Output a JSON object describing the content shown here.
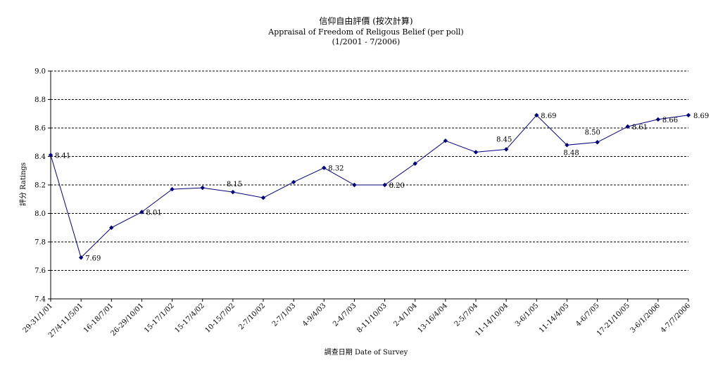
{
  "chart_data": {
    "type": "line",
    "title": "信仰自由評價 (按次計算)",
    "subtitle": "Appraisal of Freedom of Religous Belief (per poll)",
    "subtitle2": "(1/2001 - 7/2006)",
    "xlabel": "調查日期 Date of Survey",
    "ylabel": "評分 Ratings",
    "ylim": [
      7.4,
      9.0
    ],
    "yticks": [
      "9.0",
      "8.8",
      "8.6",
      "8.4",
      "8.2",
      "8.0",
      "7.8",
      "7.6",
      "7.4"
    ],
    "grid": "horizontal-dashed",
    "line_color": "#000080",
    "categories": [
      "29-31/1/01",
      "27/4-11/5/01",
      "16-18/7/01",
      "26-29/10/01",
      "15-17/1/02",
      "15-17/4/02",
      "10-15/7/02",
      "2-7/10/02",
      "2-7/1/03",
      "4-9/4/03",
      "2-4/7/03",
      "8-11/10/03",
      "2-4/1/04",
      "13-16/4/04",
      "2-5/7/04",
      "11-14/10/04",
      "3-6/1/05",
      "11-14/4/05",
      "4-6/7/05",
      "17-21/10/05",
      "3-6/1/2006",
      "4-7/7/2006"
    ],
    "values": [
      8.41,
      7.69,
      7.9,
      8.01,
      8.17,
      8.18,
      8.15,
      8.11,
      8.22,
      8.32,
      8.2,
      8.2,
      8.35,
      8.51,
      8.43,
      8.45,
      8.69,
      8.48,
      8.5,
      8.61,
      8.66,
      8.69
    ],
    "data_labels": [
      {
        "index": 0,
        "text": "8.41"
      },
      {
        "index": 1,
        "text": "7.69"
      },
      {
        "index": 3,
        "text": "8.01"
      },
      {
        "index": 6,
        "text": "8.15"
      },
      {
        "index": 9,
        "text": "8.32"
      },
      {
        "index": 11,
        "text": "8.20"
      },
      {
        "index": 15,
        "text": "8.45"
      },
      {
        "index": 16,
        "text": "8.69"
      },
      {
        "index": 17,
        "text": "8.48"
      },
      {
        "index": 18,
        "text": "8.50"
      },
      {
        "index": 19,
        "text": "8.61"
      },
      {
        "index": 20,
        "text": "8.66"
      },
      {
        "index": 21,
        "text": "8.69"
      }
    ]
  }
}
